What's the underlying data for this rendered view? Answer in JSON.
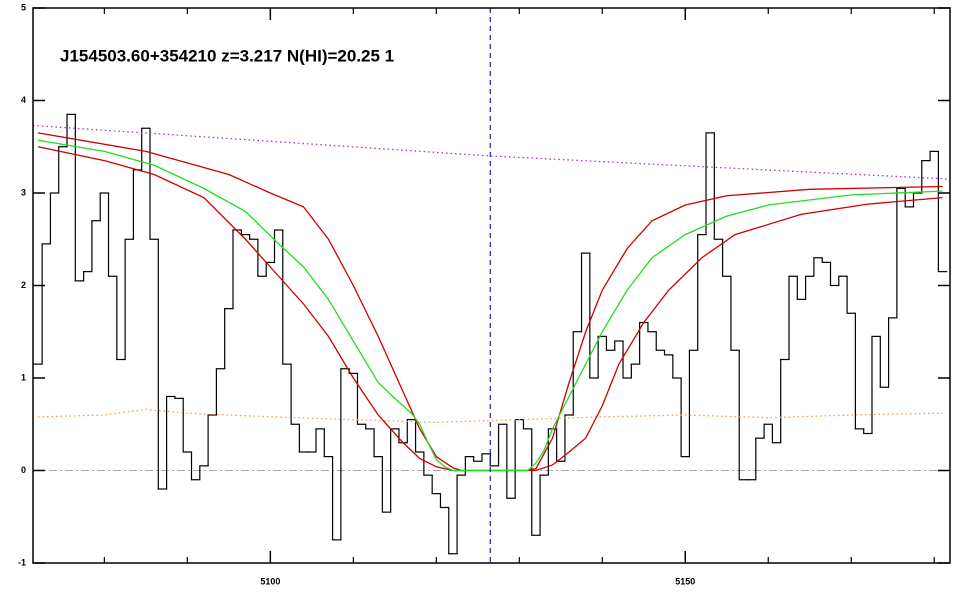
{
  "chart_data": {
    "type": "line",
    "title": "J154503.60+354210 z=3.217 N(HI)=20.25 1",
    "xlim": [
      5071.4,
      5181.9
    ],
    "ylim": [
      -1,
      5
    ],
    "xticks": [
      5100,
      5150
    ],
    "xminor": [
      5080,
      5090,
      5110,
      5120,
      5130,
      5140,
      5160,
      5170,
      5180
    ],
    "yticks": [
      -1,
      0,
      1,
      2,
      3,
      4,
      5
    ],
    "vlines": [
      {
        "x": 5126.5,
        "color": "#1a1acc",
        "style": "dashed"
      }
    ],
    "hlines": [
      {
        "y": 0,
        "color": "#aaaaaa",
        "style": "dashdot"
      }
    ],
    "series": [
      {
        "color": "#000000",
        "style": "step",
        "x": [
          5072,
          5073,
          5074,
          5075,
          5076,
          5077,
          5078,
          5079,
          5080,
          5081,
          5082,
          5083,
          5084,
          5085,
          5086,
          5087,
          5088,
          5089,
          5090,
          5091,
          5092,
          5093,
          5094,
          5095,
          5096,
          5097,
          5098,
          5099,
          5100,
          5101,
          5102,
          5103,
          5104,
          5105,
          5106,
          5107,
          5108,
          5109,
          5110,
          5111,
          5112,
          5113,
          5114,
          5115,
          5116,
          5117,
          5118,
          5119,
          5120,
          5121,
          5122,
          5123,
          5124,
          5125,
          5126,
          5127,
          5128,
          5129,
          5130,
          5131,
          5132,
          5133,
          5134,
          5135,
          5136,
          5137,
          5138,
          5139,
          5140,
          5141,
          5142,
          5143,
          5144,
          5145,
          5146,
          5147,
          5148,
          5149,
          5150,
          5151,
          5152,
          5153,
          5154,
          5155,
          5156,
          5157,
          5158,
          5159,
          5160,
          5161,
          5162,
          5163,
          5164,
          5165,
          5166,
          5167,
          5168,
          5169,
          5170,
          5171,
          5172,
          5173,
          5174,
          5175,
          5176,
          5177,
          5178,
          5179,
          5180,
          5181
        ],
        "values": [
          1.15,
          2.45,
          3.0,
          3.5,
          3.85,
          2.05,
          2.15,
          2.7,
          3.0,
          2.1,
          1.2,
          2.5,
          3.25,
          3.7,
          2.5,
          -0.2,
          0.8,
          0.78,
          0.2,
          -0.1,
          0.05,
          0.6,
          1.1,
          1.75,
          2.6,
          2.55,
          2.5,
          2.1,
          2.25,
          2.6,
          1.15,
          0.5,
          0.2,
          0.2,
          0.45,
          0.15,
          -0.75,
          1.1,
          1.05,
          0.5,
          0.45,
          0.15,
          -0.45,
          0.45,
          0.3,
          0.55,
          0.2,
          -0.05,
          -0.25,
          -0.4,
          -0.9,
          -0.05,
          0.15,
          0.1,
          0.18,
          0.05,
          0.5,
          -0.3,
          0.55,
          0.45,
          -0.7,
          -0.05,
          0.45,
          0.1,
          0.6,
          1.5,
          2.35,
          1.0,
          1.45,
          1.3,
          1.4,
          1.0,
          1.15,
          1.6,
          1.5,
          1.3,
          1.25,
          1.0,
          0.15,
          1.3,
          2.55,
          3.65,
          2.5,
          2.1,
          1.3,
          -0.1,
          -0.1,
          0.35,
          0.5,
          0.3,
          1.2,
          2.1,
          1.85,
          2.1,
          2.3,
          2.25,
          2.0,
          2.1,
          1.7,
          0.45,
          0.4,
          1.45,
          0.9,
          1.65,
          3.05,
          2.85,
          3.0,
          3.35,
          3.45,
          2.15
        ]
      },
      {
        "color": "#9a30ff",
        "style": "dotted",
        "x": [
          5071.4,
          5126.5,
          5181.9
        ],
        "values": [
          3.73,
          3.4,
          3.15
        ]
      },
      {
        "color": "#f59a50",
        "style": "dotted",
        "x": [
          5072,
          5080,
          5085,
          5090,
          5100,
          5110,
          5120,
          5130,
          5140,
          5150,
          5160,
          5170,
          5181
        ],
        "values": [
          0.58,
          0.6,
          0.66,
          0.62,
          0.58,
          0.55,
          0.52,
          0.55,
          0.58,
          0.6,
          0.57,
          0.6,
          0.62
        ]
      },
      {
        "color": "#cc0000",
        "style": "solid",
        "x": [
          5072,
          5085,
          5095,
          5100,
          5104,
          5107,
          5110,
          5113,
          5116,
          5118,
          5120,
          5122,
          5123,
          5131,
          5132,
          5134,
          5136,
          5138,
          5140,
          5143,
          5146,
          5150,
          5155,
          5165,
          5181
        ],
        "values": [
          3.65,
          3.45,
          3.2,
          3.0,
          2.85,
          2.5,
          2.0,
          1.45,
          0.85,
          0.45,
          0.15,
          0.03,
          0,
          0,
          0.02,
          0.35,
          0.95,
          1.5,
          1.95,
          2.4,
          2.7,
          2.87,
          2.97,
          3.04,
          3.07
        ]
      },
      {
        "color": "#cc0000",
        "style": "solid",
        "x": [
          5072,
          5080,
          5086,
          5092,
          5097,
          5100,
          5104,
          5107,
          5110,
          5113,
          5116,
          5118,
          5120,
          5122,
          5132,
          5134,
          5136,
          5138,
          5140,
          5142,
          5145,
          5148,
          5152,
          5156,
          5164,
          5172,
          5181
        ],
        "values": [
          3.5,
          3.35,
          3.2,
          2.95,
          2.5,
          2.2,
          1.8,
          1.45,
          1.0,
          0.6,
          0.3,
          0.13,
          0.04,
          0,
          0,
          0.06,
          0.2,
          0.35,
          0.7,
          1.15,
          1.6,
          1.95,
          2.3,
          2.55,
          2.77,
          2.88,
          2.95
        ]
      },
      {
        "color": "#22dd22",
        "style": "solid",
        "x": [
          5072,
          5080,
          5086,
          5092,
          5097,
          5101,
          5104,
          5107,
          5110,
          5113,
          5115,
          5117,
          5118,
          5119,
          5120,
          5121,
          5122,
          5131,
          5132,
          5133,
          5134,
          5136,
          5138,
          5140,
          5143,
          5146,
          5150,
          5155,
          5160,
          5170,
          5181
        ],
        "values": [
          3.57,
          3.45,
          3.3,
          3.05,
          2.8,
          2.45,
          2.2,
          1.85,
          1.4,
          0.95,
          0.78,
          0.62,
          0.5,
          0.3,
          0.12,
          0.04,
          0,
          0,
          0.08,
          0.22,
          0.45,
          0.8,
          1.15,
          1.5,
          1.95,
          2.3,
          2.55,
          2.75,
          2.87,
          2.98,
          3.02
        ]
      }
    ]
  }
}
